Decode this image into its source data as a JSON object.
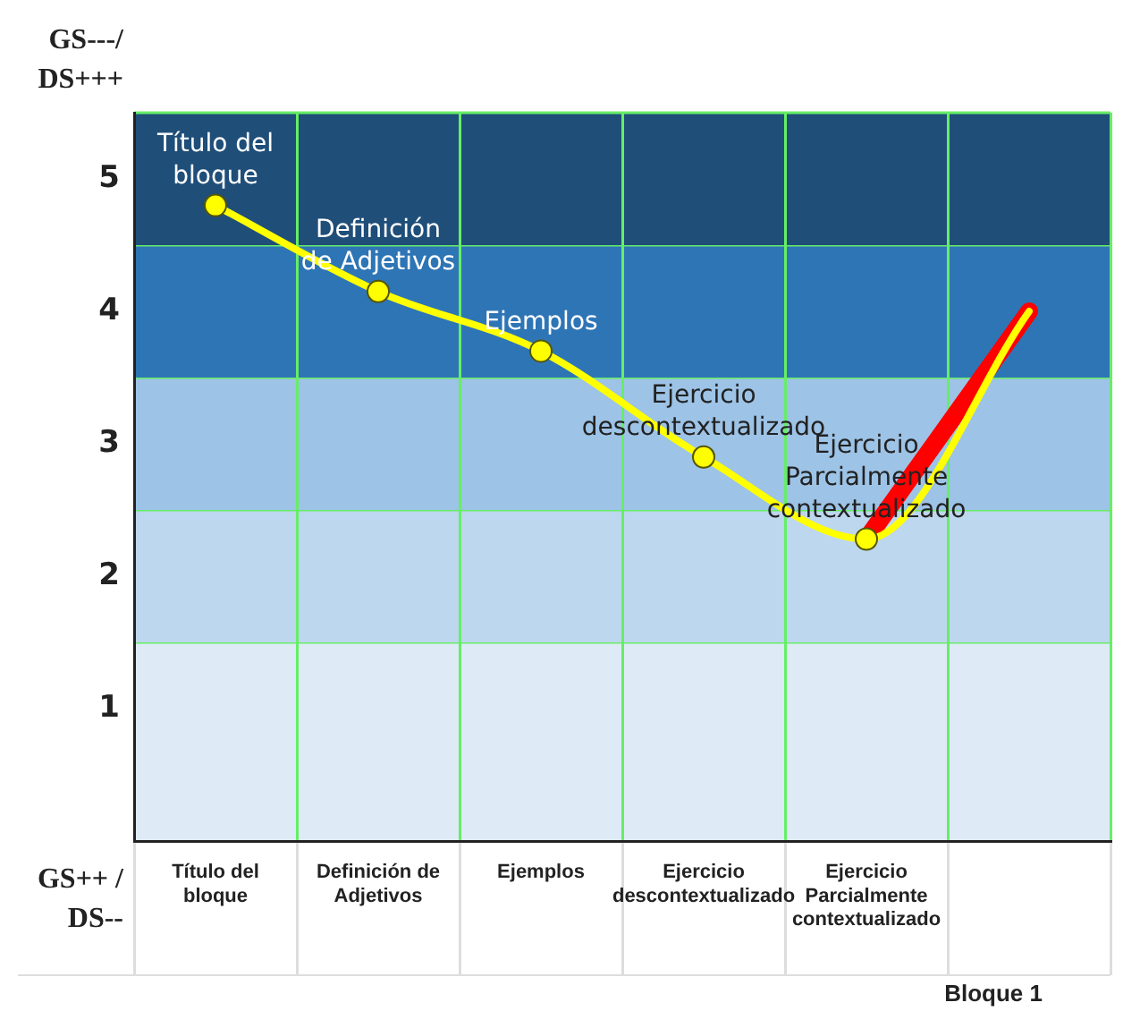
{
  "chart_data": {
    "type": "line",
    "categories": [
      "Título del bloque",
      "Definición de Adjetivos",
      "Ejemplos",
      "Ejercicio descontextualizado",
      "Ejercicio Parcialmente contextualizado",
      null
    ],
    "series": [
      {
        "color": "#ff0000",
        "marker": "none",
        "values": [
          null,
          null,
          null,
          null,
          2.28,
          4.0
        ]
      },
      {
        "color": "#ffff00",
        "values": [
          4.8,
          4.15,
          3.7,
          2.9,
          2.28,
          4.0
        ]
      }
    ],
    "ylim": [
      0,
      5.5
    ],
    "yticks": [
      1,
      2,
      3,
      4,
      5
    ],
    "xlabel": "Bloque 1",
    "grid": "x",
    "marker": "circle",
    "bands": [
      {
        "axis": "y",
        "from": 0,
        "to": 1.5,
        "color": "#deebf7"
      },
      {
        "axis": "y",
        "from": 1.5,
        "to": 2.5,
        "color": "#bdd7ee"
      },
      {
        "axis": "y",
        "from": 2.5,
        "to": 3.5,
        "color": "#9dc3e6"
      },
      {
        "axis": "y",
        "from": 3.5,
        "to": 4.5,
        "color": "#2e75b6"
      },
      {
        "axis": "y",
        "from": 4.5,
        "to": 5.5,
        "color": "#1f4e79"
      }
    ],
    "annotations": [
      "GS---/ DS+++",
      "GS++ / DS--",
      {
        "text": "Título del bloque",
        "x": "Título del bloque",
        "y": 4.8
      },
      {
        "text": "Definición de Adjetivos",
        "x": "Definición de Adjetivos",
        "y": 4.15
      },
      {
        "text": "Ejemplos",
        "x": "Ejemplos",
        "y": 3.7
      },
      {
        "text": "Ejercicio descontextualizado",
        "x": "Ejercicio descontextualizado",
        "y": 2.9
      },
      {
        "text": "Ejercicio Parcialmente contextualizado",
        "x": "Ejercicio Parcialmente contextualizado",
        "y": 2.28
      }
    ]
  }
}
